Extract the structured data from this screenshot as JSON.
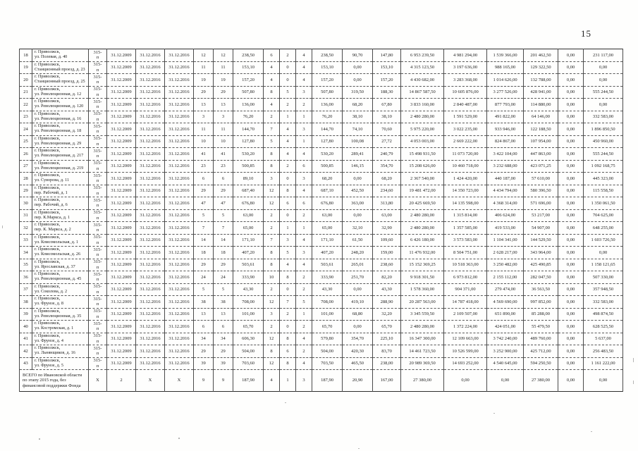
{
  "page": {
    "number": "15"
  },
  "table": {
    "rows": [
      [
        "18",
        "г. Приволжск,\nул. Полевая, д. 40",
        "315-\nп",
        "31.12.2009",
        "31.12.2016",
        "31.12.2016",
        "12",
        "12",
        "238,50",
        "6",
        "2",
        "4",
        "238,50",
        "90,70",
        "147,80",
        "6 953 239,50",
        "4 981 294,00",
        "1 539 366,00",
        "201 462,50",
        "0,00",
        "231 117,00"
      ],
      [
        "19",
        "г. Приволжск,\nСтанционный проезд, д. 23",
        "315-\nп",
        "31.12.2009",
        "31.12.2016",
        "31.12.2016",
        "11",
        "11",
        "153,10",
        "4",
        "0",
        "4",
        "153,10",
        "0,00",
        "153,10",
        "4 315 123,50",
        "3 197 636,00",
        "988 165,00",
        "129 322,50",
        "0,00",
        "0,00"
      ],
      [
        "20",
        "г. Приволжск,\nСтанционный проезд, д. 25",
        "315-\nп",
        "31.12.2009",
        "31.12.2016",
        "31.12.2016",
        "19",
        "19",
        "157,20",
        "4",
        "0",
        "4",
        "157,20",
        "0,00",
        "157,20",
        "4 430 682,00",
        "3 283 368,00",
        "1 014 626,00",
        "132 788,00",
        "0,00",
        "0,00"
      ],
      [
        "21",
        "г. Приволжск,\nул. Революционная, д. 12",
        "315-\nп",
        "31.12.2009",
        "31.12.2016",
        "31.12.2016",
        "29",
        "29",
        "507,80",
        "8",
        "5",
        "3",
        "507,80",
        "319,50",
        "188,30",
        "14 867 587,50",
        "10 605 876,00",
        "3 277 526,00",
        "428 941,00",
        "0,00",
        "555 244,50"
      ],
      [
        "22",
        "г. Приволжск,\nул. Революционная, д. 120",
        "315-\nп",
        "31.12.2009",
        "31.12.2016",
        "31.12.2016",
        "13",
        "13",
        "136,00",
        "4",
        "2",
        "2",
        "136,00",
        "68,20",
        "67,80",
        "3 833 160,00",
        "2 840 487,00",
        "877 793,00",
        "114 880,00",
        "0,00",
        "0,00"
      ],
      [
        "23",
        "г. Приволжск,\nул. Революционная, д. 16",
        "315-\nп",
        "31.12.2009",
        "31.12.2016",
        "31.12.2016",
        "3",
        "3",
        "76,20",
        "2",
        "1",
        "1",
        "76,20",
        "38,10",
        "38,10",
        "2 480 280,00",
        "1 591 529,00",
        "491 822,00",
        "64 146,00",
        "0,00",
        "332 583,00"
      ],
      [
        "24",
        "г. Приволжск,\nул. Революционная, д. 18",
        "315-\nп",
        "31.12.2009",
        "31.12.2016",
        "31.12.2016",
        "11",
        "11",
        "144,70",
        "7",
        "4",
        "3",
        "144,70",
        "74,10",
        "70,60",
        "5 975 220,00",
        "3 022 235,00",
        "933 946,00",
        "122 188,50",
        "0,00",
        "1 896 850,50"
      ],
      [
        "25",
        "г. Приволжск,\nул. Революционная, д. 29",
        "315-\nп",
        "31.12.2009",
        "31.12.2016",
        "31.12.2016",
        "10",
        "10",
        "127,80",
        "5",
        "4",
        "1",
        "127,80",
        "100,08",
        "27,72",
        "4 053 003,00",
        "2 669 222,00",
        "824 867,00",
        "107 954,00",
        "0,00",
        "450 960,00"
      ],
      [
        "26",
        "г. Приволжск,\nул. Революционная, д. 217",
        "315-\nп",
        "31.12.2009",
        "31.12.2016",
        "31.12.2016",
        "41",
        "41",
        "530,20",
        "8",
        "4",
        "4",
        "530,20",
        "289,41",
        "240,79",
        "15 498 931,50",
        "11 073 720,00",
        "3 422 104,00",
        "447 863,00",
        "0,00",
        "555 244,50"
      ],
      [
        "27",
        "г. Приволжск,\nул. Революционная, д. 219",
        "315-\nп",
        "31.12.2009",
        "31.12.2016",
        "31.12.2016",
        "23",
        "23",
        "500,85",
        "8",
        "2",
        "6",
        "500,85",
        "146,15",
        "354,70",
        "15 208 626,00",
        "10 460 718,00",
        "3 232 688,00",
        "423 071,25",
        "0,00",
        "1 092 168,75"
      ],
      [
        "28",
        "г. Приволжск,\nул. Суворова, д. 11",
        "315-\nп",
        "31.12.2009",
        "31.12.2016",
        "31.12.2016",
        "6",
        "6",
        "89,10",
        "3",
        "0",
        "3",
        "68,20",
        "0,00",
        "68,20",
        "2 367 540,00",
        "1 424 420,00",
        "440 187,00",
        "57 610,00",
        "0,00",
        "445 323,00"
      ],
      [
        "29",
        "г. Приволжск,\nпер. Рабочий, д. 1",
        "315-\nп",
        "31.12.2009",
        "31.12.2016",
        "31.12.2016",
        "29",
        "29",
        "687,40",
        "12",
        "8",
        "4",
        "687,10",
        "452,50",
        "234,60",
        "19 481 472,00",
        "14 350 723,00",
        "4 434 794,00",
        "580 396,50",
        "0,00",
        "115 558,50"
      ],
      [
        "30",
        "г. Приволжск,\nпер. Рабочий, д. 6",
        "315-\nп",
        "31.12.2009",
        "31.12.2016",
        "31.12.2016",
        "47",
        "47",
        "676,80",
        "12",
        "6",
        "6",
        "676,80",
        "363,00",
        "313,80",
        "20 425 669,50",
        "14 135 598,00",
        "4 368 314,00",
        "571 696,00",
        "0,00",
        "1 350 061,50"
      ],
      [
        "31",
        "г. Приволжск,\nпер. К.Маркса, д. 1",
        "315-\nп",
        "31.12.2009",
        "31.12.2016",
        "31.12.2016",
        "5",
        "5",
        "63,00",
        "2",
        "0",
        "2",
        "63,00",
        "0,00",
        "63,00",
        "2 480 280,00",
        "1 315 814,00",
        "406 624,00",
        "53 217,00",
        "0,00",
        "704 625,00"
      ],
      [
        "32",
        "г. Приволжск,\nпер. К. Маркса, д. 2",
        "315-\nп",
        "31.12.2009",
        "31.12.2016",
        "31.12.2016",
        "7",
        "7",
        "65,00",
        "2",
        "1",
        "1",
        "65,00",
        "32,10",
        "32,90",
        "2 480 280,00",
        "1 357 585,00",
        "419 533,00",
        "54 907,00",
        "0,00",
        "648 255,00"
      ],
      [
        "33",
        "г. Приволжск,\nул. Комсомольская, д. 1",
        "315-\nп",
        "31.12.2009",
        "31.12.2016",
        "31.12.2016",
        "14",
        "14",
        "171,10",
        "7",
        "3",
        "4",
        "171,10",
        "61,50",
        "109,60",
        "6 426 180,00",
        "3 573 583,00",
        "1 104 341,00",
        "144 529,50",
        "0,00",
        "1 603 726,50"
      ],
      [
        "34",
        "г. Приволжск,\nул. Комсомольская, д. 26",
        "315-\nп",
        "31.12.2009",
        "31.12.2016",
        "31.12.2016",
        "18",
        "18",
        "407,20",
        "8",
        "5",
        "3",
        "407,20",
        "248,20",
        "159,00",
        "11 476 932,00",
        "8 504 751,00",
        "2 628 217,00",
        "343 964,00",
        "0,00",
        "0,00"
      ],
      [
        "35",
        "г. Приволжск,\nул. Ярославская, д. 37",
        "315-\nп",
        "31.12.2009",
        "31.12.2016",
        "31.12.2016",
        "29",
        "29",
        "503,61",
        "8",
        "4",
        "4",
        "503,61",
        "265,01",
        "238,60",
        "15 152 369,25",
        "10 518 363,00",
        "3 250 482,00",
        "425 490,85",
        "0,00",
        "1 158 121,65"
      ],
      [
        "36",
        "г. Приволжск,\nул. Революционная, д. 45",
        "315-\nп",
        "31.12.2009",
        "31.12.2016",
        "31.12.2016",
        "24",
        "24",
        "333,90",
        "10",
        "8",
        "2",
        "333,90",
        "251,70",
        "82,20",
        "9 918 301,50",
        "6 973 812,00",
        "2 155 112,00",
        "282 047,50",
        "0,00",
        "507 330,00"
      ],
      [
        "37",
        "г. Приволжск,\nул. Соколова, д. 2",
        "315-\nп",
        "31.12.2009",
        "31.12.2016",
        "31.12.2016",
        "5",
        "5",
        "43,30",
        "2",
        "0",
        "2",
        "43,30",
        "0,00",
        "43,30",
        "1 578 360,00",
        "904 371,00",
        "279 474,00",
        "36 563,50",
        "0,00",
        "357 948,50"
      ],
      [
        "38",
        "г. Приволжск,\nул. Фрунзе, д. 8",
        "315-\nп",
        "31.12.2009",
        "31.12.2016",
        "31.12.2016",
        "38",
        "38",
        "708,00",
        "12",
        "7",
        "5",
        "708,00",
        "419,10",
        "288,90",
        "20 287 563,00",
        "14 787 418,00",
        "4 569 690,00",
        "997 852,00",
        "0,00",
        "332 583,00"
      ],
      [
        "39",
        "г. Приволжск,\nул. Революционная, д. 35",
        "315-\nп",
        "31.12.2009",
        "31.12.2016",
        "31.12.2016",
        "13",
        "13",
        "101,00",
        "3",
        "2",
        "1",
        "101,00",
        "68,80",
        "32,20",
        "3 345 559,50",
        "2 109 507,00",
        "651 890,00",
        "85 288,00",
        "0,00",
        "498 874,50"
      ],
      [
        "40",
        "г. Приволжск,\nул. Костромская, д. 1",
        "315-\nп",
        "31.12.2009",
        "31.12.2016",
        "31.12.2016",
        "6",
        "6",
        "65,70",
        "2",
        "0",
        "2",
        "65,70",
        "0,00",
        "65,70",
        "2 480 280,00",
        "1 372 224,00",
        "424 051,00",
        "55 479,50",
        "0,00",
        "628 525,50"
      ],
      [
        "41",
        "г. Приволжск,\nул. Фрунзе, д. 4",
        "315-\nп",
        "31.12.2009",
        "31.12.2016",
        "31.12.2016",
        "34",
        "34",
        "606,30",
        "12",
        "8",
        "4",
        "579,80",
        "354,70",
        "225,10",
        "16 347 300,00",
        "12 109 663,00",
        "3 742 240,00",
        "489 760,00",
        "0,00",
        "5 637,00"
      ],
      [
        "42",
        "г. Приволжск,\nул. Льнянщиков, д. 16",
        "315-\nп",
        "31.12.2009",
        "31.12.2016",
        "31.12.2016",
        "29",
        "29",
        "504,00",
        "8",
        "6",
        "2",
        "504,00",
        "420,30",
        "83,70",
        "14 461 723,50",
        "10 526 599,00",
        "3 252 900,00",
        "425 712,00",
        "0,00",
        "256 483,50"
      ],
      [
        "43",
        "г. Приволжск,\nул. Фрунзе, д. 5",
        "315-\nп",
        "31.12.2009",
        "31.12.2016",
        "31.12.2016",
        "39",
        "39",
        "703,60",
        "12",
        "8",
        "4",
        "703,50",
        "465,50",
        "238,00",
        "20 989 369,50",
        "14 693 252,00",
        "4 540 645,00",
        "594 250,50",
        "0,00",
        "1 161 222,00"
      ]
    ],
    "total_row": {
      "label": "ВСЕГО по Ивановской области\nпо этапу 2015 года, без\nфинансовой поддержки Фонда",
      "values": [
        "X",
        "2",
        "X",
        "X",
        "9",
        "9",
        "187,90",
        "4",
        "1",
        "3",
        "187,90",
        "20,90",
        "167,00",
        "27 380,00",
        "0,00",
        "0,00",
        "27 380,00",
        "0,00",
        "0,00"
      ]
    }
  }
}
